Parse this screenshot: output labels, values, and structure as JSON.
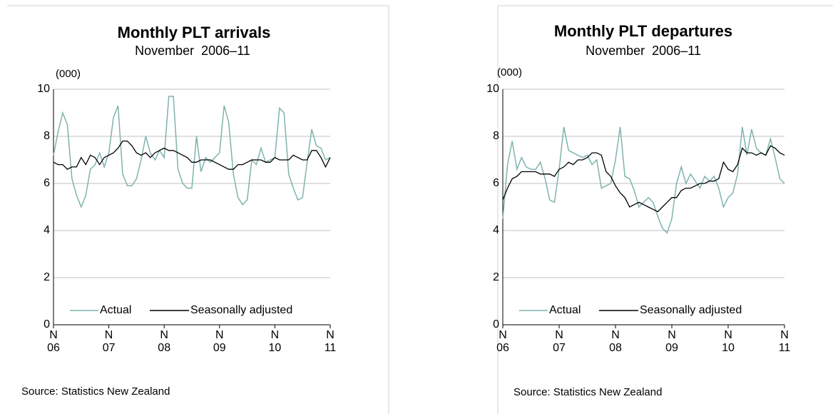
{
  "chart_data": [
    {
      "type": "line",
      "title": "Monthly PLT arrivals",
      "subtitle": "November  2006–11",
      "ylabel": "(000)",
      "source": "Source: Statistics New Zealand",
      "categories": [
        "N\n06",
        null,
        null,
        null,
        null,
        null,
        null,
        null,
        null,
        null,
        null,
        null,
        "N\n07",
        null,
        null,
        null,
        null,
        null,
        null,
        null,
        null,
        null,
        null,
        null,
        "N\n08",
        null,
        null,
        null,
        null,
        null,
        null,
        null,
        null,
        null,
        null,
        null,
        "N\n09",
        null,
        null,
        null,
        null,
        null,
        null,
        null,
        null,
        null,
        null,
        null,
        "N\n10",
        null,
        null,
        null,
        null,
        null,
        null,
        null,
        null,
        null,
        null,
        null,
        "N\n11"
      ],
      "series": [
        {
          "name": "Actual",
          "color": "#7fb3ad",
          "values": [
            7.2,
            8.2,
            9.0,
            8.5,
            6.2,
            5.5,
            5.0,
            5.5,
            6.6,
            6.8,
            7.3,
            6.7,
            7.3,
            8.8,
            9.3,
            6.4,
            5.9,
            5.9,
            6.2,
            7.0,
            8.0,
            7.3,
            7.0,
            7.4,
            7.1,
            9.7,
            9.7,
            6.6,
            6.0,
            5.8,
            5.8,
            8.0,
            6.5,
            7.1,
            6.9,
            7.1,
            7.3,
            9.3,
            8.6,
            6.4,
            5.4,
            5.1,
            5.3,
            7.0,
            6.8,
            7.5,
            6.9,
            7.0,
            7.1,
            9.2,
            9.0,
            6.4,
            5.8,
            5.3,
            5.4,
            6.9,
            8.3,
            7.6,
            7.5,
            7.0,
            7.1
          ]
        },
        {
          "name": "Seasonally adjusted",
          "color": "#000000",
          "values": [
            6.9,
            6.8,
            6.8,
            6.6,
            6.7,
            6.7,
            7.1,
            6.8,
            7.2,
            7.1,
            6.8,
            7.1,
            7.2,
            7.3,
            7.5,
            7.8,
            7.8,
            7.6,
            7.3,
            7.2,
            7.3,
            7.1,
            7.3,
            7.4,
            7.5,
            7.4,
            7.4,
            7.3,
            7.2,
            7.1,
            6.9,
            6.9,
            7.0,
            7.0,
            7.0,
            6.9,
            6.8,
            6.7,
            6.6,
            6.6,
            6.8,
            6.8,
            6.9,
            7.0,
            7.0,
            7.0,
            6.9,
            6.9,
            7.1,
            7.0,
            7.0,
            7.0,
            7.2,
            7.1,
            7.0,
            7.0,
            7.4,
            7.4,
            7.1,
            6.7,
            7.1
          ]
        }
      ],
      "ylim": [
        0,
        10
      ],
      "yticks": [
        0,
        2,
        4,
        6,
        8,
        10
      ],
      "grid": true,
      "legend": "bottom"
    },
    {
      "type": "line",
      "title": "Monthly PLT departures",
      "subtitle": "November  2006–11",
      "ylabel": "(000)",
      "source": "Source: Statistics New Zealand",
      "categories": [
        "N\n06",
        null,
        null,
        null,
        null,
        null,
        null,
        null,
        null,
        null,
        null,
        null,
        "N\n07",
        null,
        null,
        null,
        null,
        null,
        null,
        null,
        null,
        null,
        null,
        null,
        "N\n08",
        null,
        null,
        null,
        null,
        null,
        null,
        null,
        null,
        null,
        null,
        null,
        "N\n09",
        null,
        null,
        null,
        null,
        null,
        null,
        null,
        null,
        null,
        null,
        null,
        "N\n10",
        null,
        null,
        null,
        null,
        null,
        null,
        null,
        null,
        null,
        null,
        null,
        "N\n11"
      ],
      "series": [
        {
          "name": "Actual",
          "color": "#7fb3ad",
          "values": [
            4.5,
            6.8,
            7.8,
            6.6,
            7.1,
            6.7,
            6.6,
            6.6,
            6.9,
            6.2,
            5.3,
            5.2,
            6.6,
            8.4,
            7.4,
            7.3,
            7.2,
            7.1,
            7.2,
            6.8,
            7.0,
            5.8,
            5.9,
            6.0,
            7.0,
            8.4,
            6.3,
            6.2,
            5.7,
            5.0,
            5.2,
            5.4,
            5.2,
            4.6,
            4.1,
            3.9,
            4.5,
            6.0,
            6.7,
            6.0,
            6.4,
            6.1,
            5.8,
            6.3,
            6.1,
            6.3,
            5.8,
            5.0,
            5.4,
            5.6,
            6.4,
            8.4,
            7.2,
            8.3,
            7.5,
            7.3,
            7.2,
            7.9,
            7.1,
            6.2,
            6.0
          ]
        },
        {
          "name": "Seasonally adjusted",
          "color": "#000000",
          "values": [
            5.3,
            5.8,
            6.2,
            6.3,
            6.5,
            6.5,
            6.5,
            6.5,
            6.4,
            6.4,
            6.4,
            6.3,
            6.6,
            6.7,
            6.9,
            6.8,
            7.0,
            7.0,
            7.1,
            7.3,
            7.3,
            7.2,
            6.5,
            6.3,
            5.9,
            5.6,
            5.4,
            5.0,
            5.1,
            5.2,
            5.1,
            5.0,
            4.9,
            4.8,
            5.0,
            5.2,
            5.4,
            5.4,
            5.7,
            5.8,
            5.8,
            5.9,
            6.0,
            6.0,
            6.1,
            6.1,
            6.2,
            6.9,
            6.6,
            6.5,
            6.8,
            7.5,
            7.3,
            7.3,
            7.2,
            7.3,
            7.2,
            7.6,
            7.5,
            7.3,
            7.2
          ]
        }
      ],
      "ylim": [
        0,
        10
      ],
      "yticks": [
        0,
        2,
        4,
        6,
        8,
        10
      ],
      "grid": true,
      "legend": "bottom"
    }
  ]
}
